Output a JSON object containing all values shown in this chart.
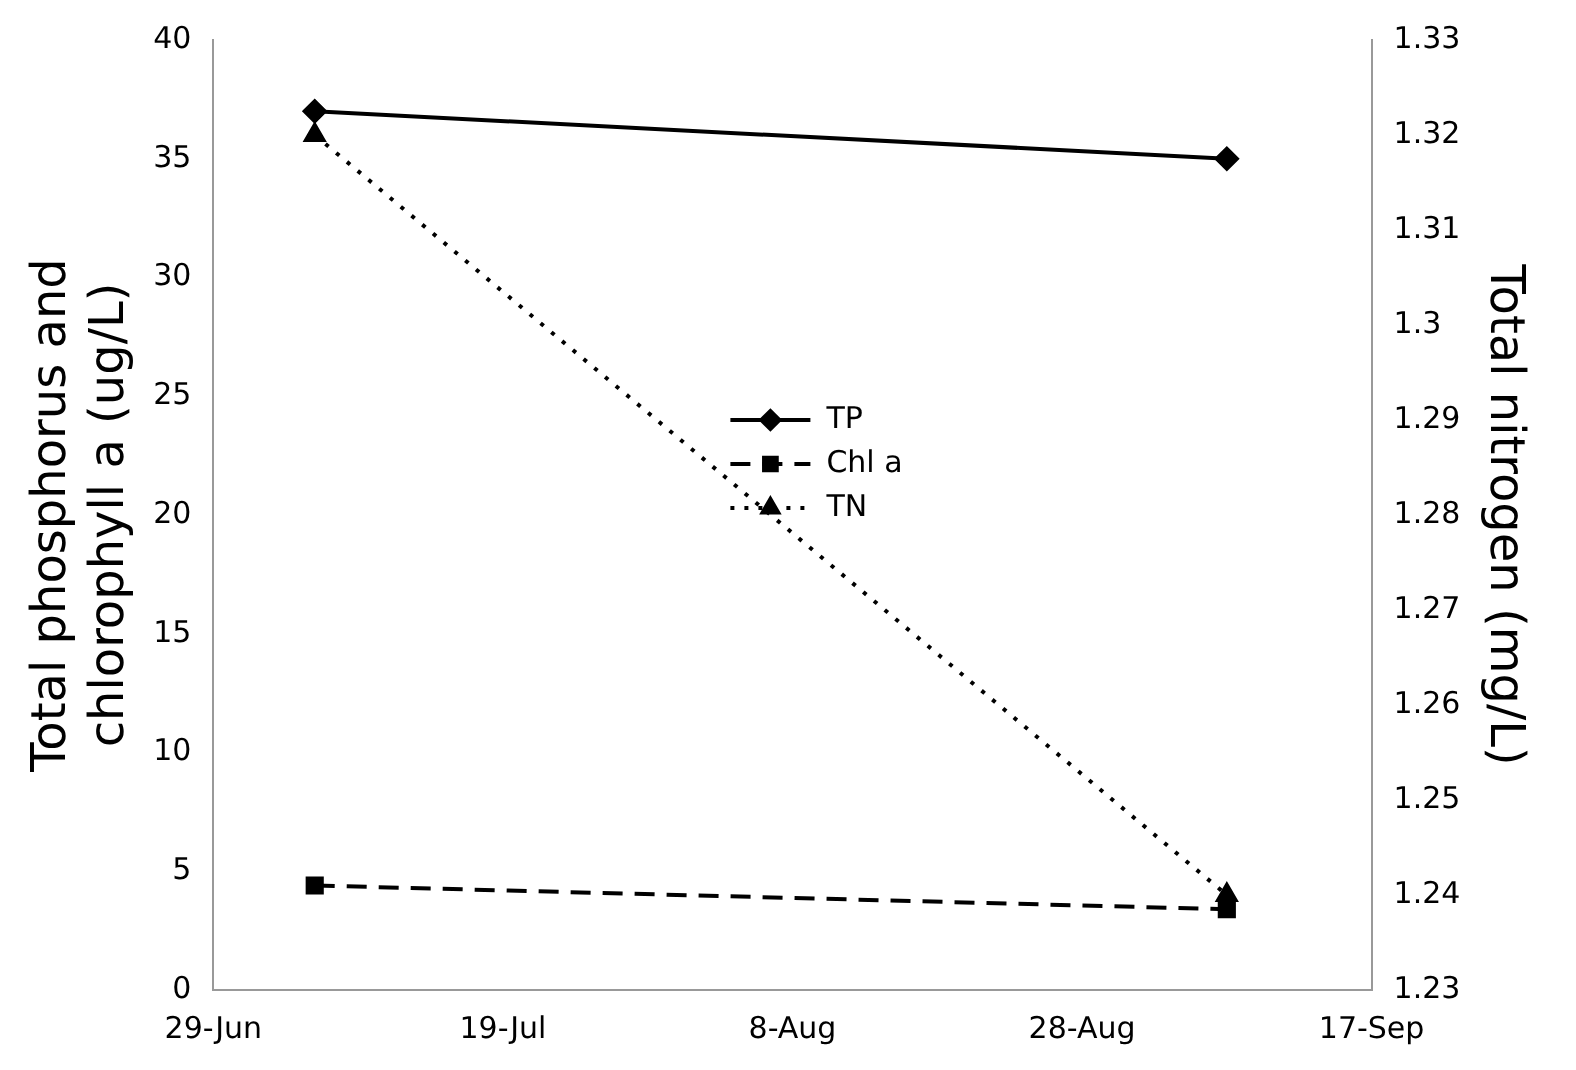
{
  "chart_data": {
    "type": "line",
    "ylabel": "Total phosphorus and chlorophyll a (ug/L)",
    "y2label": "Total nitrogen (mg/L)",
    "x": [
      "--07-06",
      "--09-07"
    ],
    "series": [
      {
        "name": "TP",
        "color": "#000000",
        "values": [
          37,
          35
        ],
        "marker": "diamond",
        "line_style": "solid"
      },
      {
        "name": "Chl a",
        "color": "#000000",
        "values": [
          4.4,
          3.4
        ],
        "marker": "square",
        "line_style": "dashed"
      },
      {
        "name": "TN",
        "color": "#000000",
        "values": [
          1.32,
          1.24
        ],
        "marker": "triangle",
        "line_style": "dotted",
        "axis": "y2"
      }
    ],
    "xlim": [
      "--06-29",
      "--09-17"
    ],
    "xticks": [
      {
        "value": "--06-29",
        "label": "29-Jun"
      },
      {
        "value": "--07-19",
        "label": "19-Jul"
      },
      {
        "value": "--08-08",
        "label": "8-Aug"
      },
      {
        "value": "--08-28",
        "label": "28-Aug"
      },
      {
        "value": "--09-17",
        "label": "17-Sep"
      }
    ],
    "ylim": [
      0,
      40
    ],
    "yticks": [
      0,
      5,
      10,
      15,
      20,
      25,
      30,
      35,
      40
    ],
    "y2lim": [
      1.23,
      1.33
    ],
    "y2ticks": [
      1.23,
      1.24,
      1.25,
      1.26,
      1.27,
      1.28,
      1.29,
      1.3,
      1.31,
      1.32,
      1.33
    ],
    "grid": false,
    "legend": "center"
  }
}
